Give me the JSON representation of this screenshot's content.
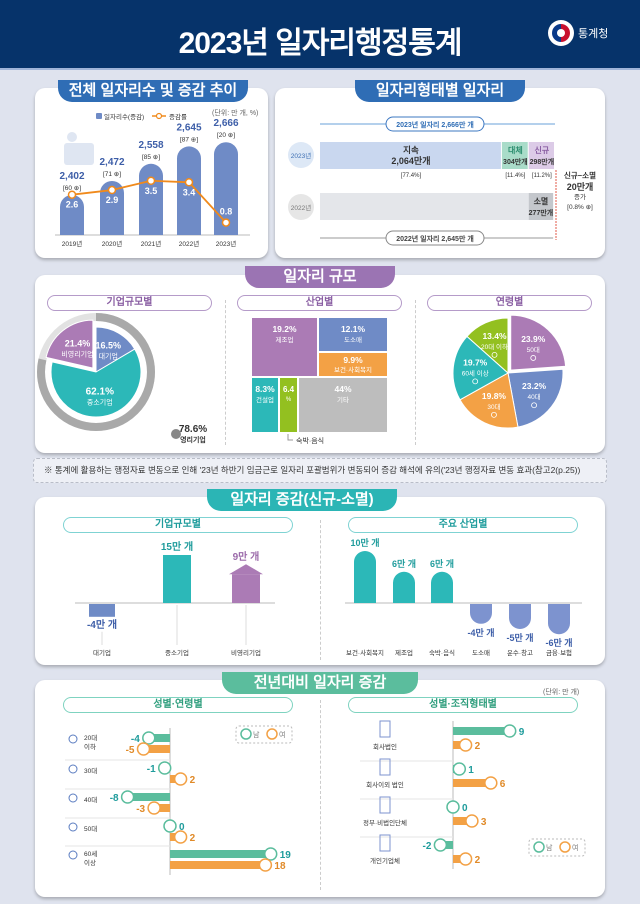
{
  "header": {
    "title": "2023년 일자리행정통계",
    "logo_text": "통계청"
  },
  "sections": {
    "trend": {
      "title": "전체 일자리수 및 증감 추이",
      "unit": "(단위: 만 개, %)",
      "legend_bar": "일자리수(증감)",
      "legend_line": "증감률"
    },
    "type": {
      "title": "일자리형태별 일자리"
    },
    "size": {
      "title": "일자리 규모",
      "sub1": "기업규모별",
      "sub2": "산업별",
      "sub3": "연령별"
    },
    "note": "※ 통계에 활용하는 행정자료 변동으로 인해 '23년 하반기 임금근로 일자리 포괄범위가 변동되어 증감 해석에 유의('23년 행정자료 변동 효과(참고2(p.25))",
    "change": {
      "title": "일자리 증감(신규-소멸)",
      "sub1": "기업규모별",
      "sub2": "주요 산업별"
    },
    "yoy": {
      "title": "전년대비 일자리 증감",
      "unit": "(단위: 만 개)",
      "sub1": "성별·연령별",
      "sub2": "성별·조직형태별",
      "legend_male": "남",
      "legend_female": "여"
    }
  },
  "colors": {
    "header": "#06336a",
    "blue": "#6f8bc6",
    "teal": "#2cb8b8",
    "purple": "#ab7bb5",
    "orange": "#f3a145",
    "green": "#93c020",
    "gray": "#bdbdbd",
    "male": "#5bbd9d",
    "female": "#f3a145",
    "line": "#f08a1c"
  },
  "chart_data": [
    {
      "id": "trend",
      "type": "bar+line",
      "categories": [
        "2019년",
        "2020년",
        "2021년",
        "2022년",
        "2023년"
      ],
      "series": [
        {
          "name": "일자리수(증감)",
          "values": [
            2402,
            2472,
            2558,
            2645,
            2666
          ],
          "changes": [
            60,
            71,
            85,
            87,
            20
          ]
        },
        {
          "name": "증감률",
          "values": [
            2.6,
            2.9,
            3.5,
            3.4,
            0.8
          ]
        }
      ]
    },
    {
      "id": "job-type",
      "type": "stacked-bar",
      "unit": "만 개",
      "y2023": {
        "label": "2023년",
        "total_label": "2023년 일자리",
        "total": 2666,
        "segments": [
          {
            "name": "지속",
            "value": 2064,
            "pct": "77.4%"
          },
          {
            "name": "대체",
            "value": 304,
            "pct": "11.4%"
          },
          {
            "name": "신규",
            "value": 298,
            "pct": "11.2%"
          }
        ]
      },
      "y2022": {
        "label": "2022년",
        "total_label": "2022년 일자리",
        "total": 2645,
        "segments": [
          {
            "name": "소멸",
            "value": 277
          }
        ]
      },
      "net": {
        "label": "신규−소멸",
        "value": 20,
        "word": "증가",
        "pct": "0.8%"
      }
    },
    {
      "id": "enterprise-size",
      "type": "pie",
      "slices": [
        {
          "name": "대기업",
          "value": 16.5
        },
        {
          "name": "중소기업",
          "value": 62.1
        },
        {
          "name": "비영리기업",
          "value": 21.4
        }
      ],
      "ring": {
        "name": "영리기업",
        "value": 78.6
      }
    },
    {
      "id": "industry",
      "type": "treemap",
      "cells": [
        {
          "name": "제조업",
          "value": 19.2
        },
        {
          "name": "도소매",
          "value": 12.1
        },
        {
          "name": "보건·사회복지",
          "value": 9.9
        },
        {
          "name": "건설업",
          "value": 8.3
        },
        {
          "name": "숙박·음식",
          "value": 6.4
        },
        {
          "name": "기타",
          "value": 44.0
        }
      ]
    },
    {
      "id": "age",
      "type": "pie",
      "slices": [
        {
          "name": "50대",
          "value": 23.9
        },
        {
          "name": "40대",
          "value": 23.2
        },
        {
          "name": "30대",
          "value": 19.8
        },
        {
          "name": "60세 이상",
          "value": 19.7
        },
        {
          "name": "20대 이하",
          "value": 13.4
        }
      ]
    },
    {
      "id": "change-enterprise",
      "type": "bar",
      "unit": "만 개",
      "categories": [
        "대기업",
        "중소기업",
        "비영리기업"
      ],
      "values": [
        -4,
        15,
        9
      ]
    },
    {
      "id": "change-industry",
      "type": "bar",
      "unit": "만 개",
      "categories": [
        "보건·사회복지",
        "제조업",
        "숙박·음식",
        "도소매",
        "운수·창고",
        "금융·보험"
      ],
      "values": [
        10,
        6,
        6,
        -4,
        -5,
        -6
      ]
    },
    {
      "id": "yoy-age",
      "type": "hbar",
      "categories": [
        "20대 이하",
        "30대",
        "40대",
        "50대",
        "60세 이상"
      ],
      "series": [
        {
          "name": "남",
          "values": [
            -4,
            -1,
            -8,
            0,
            19
          ]
        },
        {
          "name": "여",
          "values": [
            -5,
            2,
            -3,
            2,
            18
          ]
        }
      ]
    },
    {
      "id": "yoy-org",
      "type": "hbar",
      "categories": [
        "회사법인",
        "회사이외 법인",
        "정부·비법인단체",
        "개인기업체"
      ],
      "series": [
        {
          "name": "남",
          "values": [
            9,
            1,
            0,
            -2
          ]
        },
        {
          "name": "여",
          "values": [
            2,
            6,
            3,
            2
          ]
        }
      ]
    }
  ]
}
